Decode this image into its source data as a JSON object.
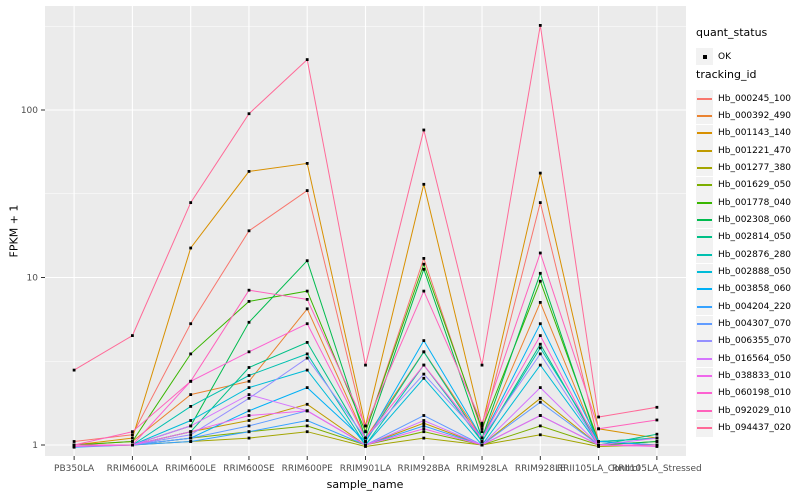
{
  "figure": {
    "y_axis": {
      "title": "FPKM + 1"
    },
    "x_axis": {
      "title": "sample_name"
    },
    "legend": {
      "quant_status_title": "quant_status",
      "quant_status_items": [
        {
          "label": "OK",
          "shape": "square-point",
          "color": "#000000"
        }
      ],
      "tracking_id_title": "tracking_id"
    }
  },
  "chart_data": {
    "type": "line",
    "title": "",
    "xlabel": "sample_name",
    "ylabel": "FPKM + 1",
    "y_scale": "log10",
    "ylim": [
      0.86,
      420
    ],
    "y_ticks": [
      1,
      10,
      100
    ],
    "grid": true,
    "legend_position": "right",
    "panel_background": "#EBEBEB",
    "grid_color": "#FFFFFF",
    "point_marker": {
      "label": "OK",
      "shape": "square",
      "color": "#000000"
    },
    "categories": [
      "PB350LA",
      "RRIM600LA",
      "RRIM600LE",
      "RRIM600SE",
      "RRIM600PE",
      "RRIM901LA",
      "RRIM928BA",
      "RRIM928LA",
      "RRIM928LE",
      "RRII105LA_Control",
      "RRII105LA_Stressed"
    ],
    "series": [
      {
        "name": "Hb_000245_100",
        "color": "#F8766D",
        "values": [
          1.05,
          1.15,
          5.3,
          19,
          33,
          1.2,
          13,
          1.2,
          28,
          1.05,
          1.0
        ]
      },
      {
        "name": "Hb_000392_490",
        "color": "#EA8331",
        "values": [
          1.0,
          1.05,
          2.0,
          2.4,
          6.5,
          1.1,
          3.6,
          1.1,
          7.1,
          1.0,
          1.0
        ]
      },
      {
        "name": "Hb_001143_140",
        "color": "#D89000",
        "values": [
          1.0,
          1.1,
          15,
          43,
          48,
          1.3,
          36,
          1.3,
          42,
          1.25,
          1.1
        ]
      },
      {
        "name": "Hb_001221_470",
        "color": "#C09B00",
        "values": [
          1.0,
          1.0,
          1.2,
          1.4,
          1.75,
          1.0,
          1.35,
          1.0,
          1.9,
          1.0,
          1.05
        ]
      },
      {
        "name": "Hb_001277_380",
        "color": "#A3A500",
        "values": [
          0.98,
          1.0,
          1.05,
          1.1,
          1.2,
          0.98,
          1.1,
          1.0,
          1.15,
          0.98,
          1.0
        ]
      },
      {
        "name": "Hb_001629_050",
        "color": "#7CAE00",
        "values": [
          1.0,
          1.0,
          1.1,
          1.2,
          1.3,
          1.0,
          1.2,
          1.0,
          1.3,
          1.0,
          1.0
        ]
      },
      {
        "name": "Hb_001778_040",
        "color": "#39B600",
        "values": [
          1.0,
          1.05,
          3.5,
          7.2,
          8.3,
          1.2,
          12,
          1.25,
          9.5,
          1.05,
          1.1
        ]
      },
      {
        "name": "Hb_002308_060",
        "color": "#00BB4E",
        "values": [
          1.0,
          1.0,
          1.3,
          5.4,
          12.6,
          1.1,
          11.2,
          1.1,
          10.6,
          1.0,
          1.05
        ]
      },
      {
        "name": "Hb_002814_050",
        "color": "#00C087",
        "values": [
          1.0,
          1.0,
          1.2,
          2.9,
          4.1,
          1.05,
          3.6,
          1.05,
          4.0,
          1.0,
          1.16
        ]
      },
      {
        "name": "Hb_002876_280",
        "color": "#00C0AF",
        "values": [
          1.0,
          1.0,
          1.7,
          2.6,
          3.5,
          1.0,
          3.0,
          1.05,
          3.8,
          1.05,
          1.1
        ]
      },
      {
        "name": "Hb_002888_050",
        "color": "#00BCD8",
        "values": [
          1.0,
          1.0,
          1.4,
          2.2,
          2.8,
          1.0,
          2.5,
          1.0,
          3.0,
          1.0,
          1.0
        ]
      },
      {
        "name": "Hb_003858_060",
        "color": "#00B0F6",
        "values": [
          1.0,
          1.0,
          1.1,
          1.6,
          2.2,
          1.05,
          4.2,
          1.1,
          5.3,
          1.05,
          1.0
        ]
      },
      {
        "name": "Hb_004204_220",
        "color": "#35A2FF",
        "values": [
          0.97,
          1.0,
          1.05,
          1.2,
          1.4,
          1.0,
          1.3,
          1.0,
          1.5,
          1.0,
          1.0
        ]
      },
      {
        "name": "Hb_004307_070",
        "color": "#619CFF",
        "values": [
          1.0,
          1.0,
          1.1,
          1.3,
          1.6,
          1.0,
          1.5,
          1.0,
          1.8,
          1.0,
          1.0
        ]
      },
      {
        "name": "Hb_006355_070",
        "color": "#9590FF",
        "values": [
          1.0,
          1.0,
          1.15,
          1.9,
          3.3,
          1.1,
          2.65,
          1.1,
          3.5,
          1.0,
          1.0
        ]
      },
      {
        "name": "Hb_016564_050",
        "color": "#D575FE",
        "values": [
          1.0,
          1.0,
          1.3,
          2.0,
          1.6,
          1.0,
          1.4,
          1.0,
          2.2,
          1.0,
          1.1
        ]
      },
      {
        "name": "Hb_038833_010",
        "color": "#EF67EB",
        "values": [
          0.98,
          1.0,
          1.2,
          1.5,
          1.6,
          1.0,
          1.25,
          1.0,
          1.5,
          1.0,
          0.98
        ]
      },
      {
        "name": "Hb_060198_010",
        "color": "#FD61D1",
        "values": [
          1.0,
          1.0,
          2.4,
          3.6,
          5.3,
          1.1,
          3.0,
          1.1,
          4.5,
          1.0,
          1.0
        ]
      },
      {
        "name": "Hb_092029_010",
        "color": "#FF62BC",
        "values": [
          1.0,
          1.2,
          2.4,
          8.4,
          7.4,
          1.3,
          8.3,
          1.35,
          14,
          1.25,
          1.41
        ]
      },
      {
        "name": "Hb_094437_020",
        "color": "#FF6A98",
        "values": [
          2.8,
          4.5,
          28,
          95,
          200,
          3.0,
          76,
          3.0,
          320,
          1.47,
          1.68
        ]
      }
    ]
  }
}
